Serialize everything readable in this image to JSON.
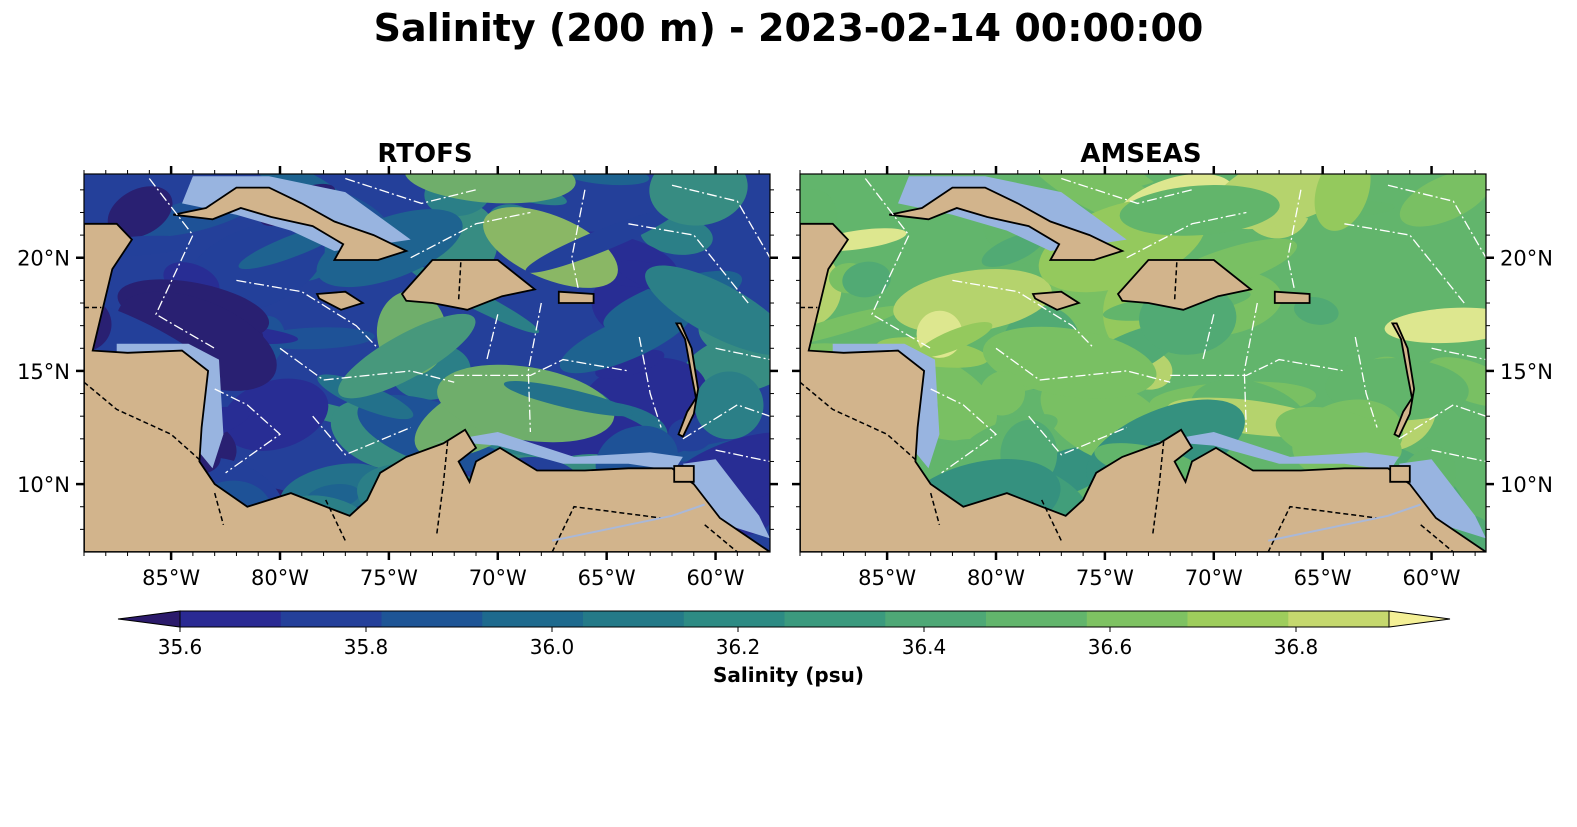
{
  "title": "Salinity (200 m) - 2023-02-14 00:00:00",
  "panels": [
    {
      "title": "RTOFS",
      "palette_bias": 0.0
    },
    {
      "title": "AMSEAS",
      "palette_bias": 0.55
    }
  ],
  "lon_ticks": [
    "85°W",
    "80°W",
    "75°W",
    "70°W",
    "65°W",
    "60°W"
  ],
  "lat_ticks": [
    "20°N",
    "15°N",
    "10°N"
  ],
  "colorbar": {
    "label": "Salinity (psu)",
    "tick_labels": [
      "35.6",
      "35.8",
      "36.0",
      "36.2",
      "36.4",
      "36.6",
      "36.8"
    ],
    "colors": [
      "#2b1a6b",
      "#2a2a93",
      "#24409a",
      "#1e5596",
      "#1e6a8e",
      "#247a88",
      "#2d8b84",
      "#3b9a7e",
      "#4ea876",
      "#62b56c",
      "#7ec262",
      "#9ecd5c",
      "#c5d86e",
      "#f4f096"
    ]
  },
  "colors": {
    "land": "#d2b48c",
    "shelf": "#98b4e0",
    "eez_lines": "#ffffff"
  }
}
